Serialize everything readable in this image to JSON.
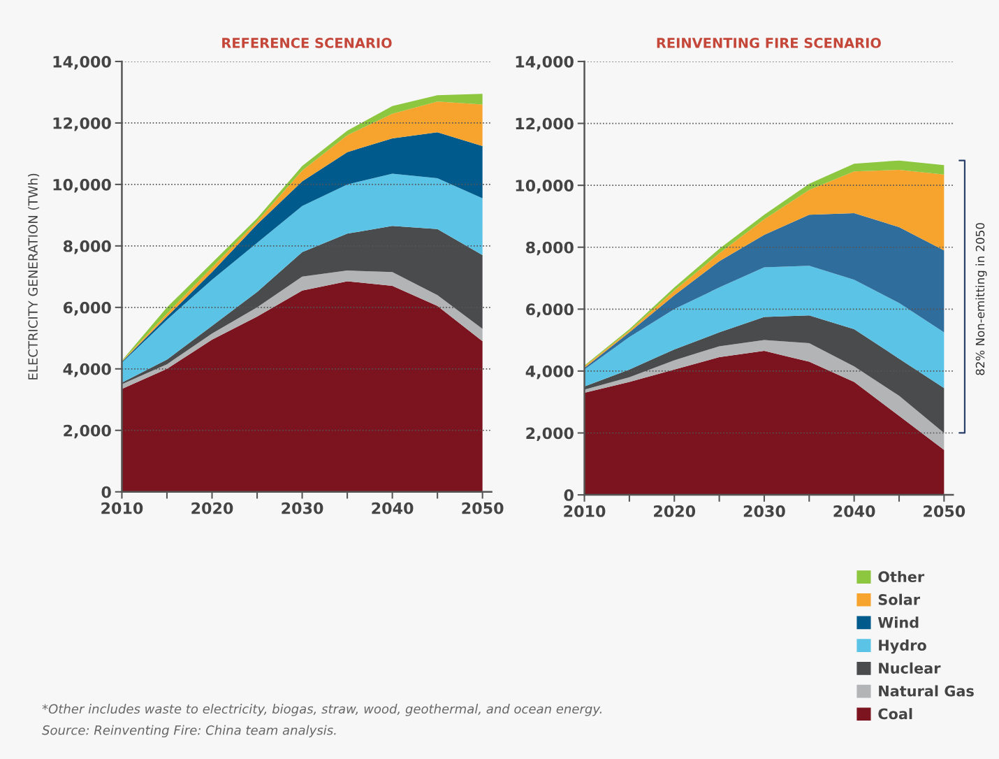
{
  "chart_data": [
    {
      "type": "area",
      "stacked": true,
      "title": "REFERENCE SCENARIO",
      "ylabel": "ELECTRICITY GENERATION (TWh)",
      "x": [
        2010,
        2015,
        2020,
        2025,
        2030,
        2035,
        2040,
        2045,
        2050
      ],
      "xlim": [
        2010,
        2051
      ],
      "xticks": [
        2010,
        {
          "value": 2015,
          "label": null
        },
        2020,
        {
          "value": 2025,
          "label": null
        },
        2030,
        {
          "value": 2035,
          "label": null
        },
        2040,
        {
          "value": 2045,
          "label": null
        },
        2050
      ],
      "ylim": [
        0,
        14000
      ],
      "yticks": [
        0,
        {
          "value": 2000,
          "label": "2,000"
        },
        {
          "value": 4000,
          "label": "4,000"
        },
        {
          "value": 6000,
          "label": "6,000"
        },
        {
          "value": 8000,
          "label": "8,000"
        },
        {
          "value": 10000,
          "label": "10,000"
        },
        {
          "value": 12000,
          "label": "12,000"
        },
        {
          "value": 14000,
          "label": "14,000"
        }
      ],
      "grid": "y",
      "legend": "bottom right",
      "annotations": [
        "*Other includes waste to electricity, biogas, straw, wood, geothermal, and ocean energy.",
        "Source: Reinventing Fire: China team analysis."
      ],
      "series": [
        {
          "name": "Coal",
          "color": "#7b141e",
          "values": [
            3350,
            4000,
            4950,
            5700,
            6550,
            6850,
            6700,
            6050,
            4900
          ]
        },
        {
          "name": "Natural Gas",
          "color": "#b3b4b6",
          "values": [
            150,
            150,
            200,
            300,
            450,
            350,
            450,
            350,
            400
          ]
        },
        {
          "name": "Nuclear",
          "color": "#4a4b4d",
          "values": [
            50,
            150,
            250,
            500,
            800,
            1200,
            1500,
            2150,
            2400
          ]
        },
        {
          "name": "Hydro",
          "color": "#5bc4e6",
          "values": [
            650,
            1300,
            1500,
            1600,
            1500,
            1600,
            1700,
            1650,
            1850
          ]
        },
        {
          "name": "Wind",
          "color": "#005a8c",
          "values": [
            30,
            100,
            250,
            600,
            800,
            1050,
            1150,
            1500,
            1700
          ]
        },
        {
          "name": "Solar",
          "color": "#f7a42e",
          "values": [
            20,
            100,
            150,
            100,
            350,
            550,
            800,
            1000,
            1350
          ]
        },
        {
          "name": "Other",
          "color": "#8dc63f",
          "values": [
            20,
            200,
            150,
            100,
            150,
            150,
            250,
            200,
            350
          ]
        }
      ]
    },
    {
      "type": "area",
      "stacked": true,
      "title": "REINVENTING FIRE SCENARIO",
      "x": [
        2010,
        2015,
        2020,
        2025,
        2030,
        2035,
        2040,
        2045,
        2050
      ],
      "xlim": [
        2010,
        2051
      ],
      "xticks": [
        2010,
        {
          "value": 2015,
          "label": null
        },
        2020,
        {
          "value": 2025,
          "label": null
        },
        2030,
        {
          "value": 2035,
          "label": null
        },
        2040,
        {
          "value": 2045,
          "label": null
        },
        2050
      ],
      "ylim": [
        0,
        14000
      ],
      "yticks": [
        0,
        {
          "value": 2000,
          "label": "2,000"
        },
        {
          "value": 4000,
          "label": "4,000"
        },
        {
          "value": 6000,
          "label": "6,000"
        },
        {
          "value": 8000,
          "label": "8,000"
        },
        {
          "value": 10000,
          "label": "10,000"
        },
        {
          "value": 12000,
          "label": "12,000"
        },
        {
          "value": 14000,
          "label": "14,000"
        }
      ],
      "grid": "y",
      "annotations": [
        "82% Non-emitting in 2050"
      ],
      "series": [
        {
          "color": "#7b141e",
          "values": [
            3300,
            3650,
            4050,
            4450,
            4650,
            4300,
            3650,
            2550,
            1450
          ]
        },
        {
          "color": "#b3b4b6",
          "values": [
            100,
            150,
            300,
            350,
            350,
            600,
            500,
            650,
            550
          ]
        },
        {
          "color": "#4a4b4d",
          "values": [
            100,
            250,
            350,
            450,
            750,
            900,
            1200,
            1200,
            1450
          ]
        },
        {
          "color": "#5bc4e6",
          "values": [
            550,
            1050,
            1300,
            1450,
            1600,
            1600,
            1600,
            1800,
            1800
          ]
        },
        {
          "color": "#2f6d9c",
          "values": [
            50,
            150,
            450,
            850,
            1050,
            1650,
            2150,
            2450,
            2650
          ]
        },
        {
          "color": "#f7a42e",
          "values": [
            50,
            50,
            150,
            250,
            500,
            800,
            1350,
            1850,
            2450
          ]
        },
        {
          "color": "#8dc63f",
          "values": [
            30,
            50,
            100,
            150,
            150,
            200,
            250,
            300,
            300
          ]
        }
      ]
    }
  ]
}
